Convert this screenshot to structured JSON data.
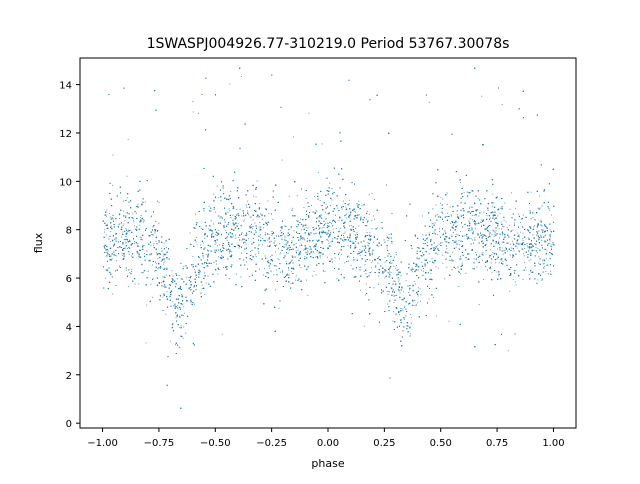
{
  "chart_data": {
    "type": "scatter",
    "title": "1SWASPJ004926.77-310219.0 Period 53767.30078s",
    "xlabel": "phase",
    "ylabel": "flux",
    "xlim": [
      -1.1,
      1.1
    ],
    "ylim": [
      -0.2,
      15.1
    ],
    "xticks": [
      -1.0,
      -0.75,
      -0.5,
      -0.25,
      0.0,
      0.25,
      0.5,
      0.75,
      1.0
    ],
    "xtick_labels": [
      "−1.00",
      "−0.75",
      "−0.50",
      "−0.25",
      "0.00",
      "0.25",
      "0.50",
      "0.75",
      "1.00"
    ],
    "yticks": [
      0,
      2,
      4,
      6,
      8,
      10,
      12,
      14
    ],
    "ytick_labels": [
      "0",
      "2",
      "4",
      "6",
      "8",
      "10",
      "12",
      "14"
    ],
    "grid": false,
    "marker_color": "#1f77b4",
    "series": [
      {
        "x": [
          -1.0,
          -0.9,
          -0.8,
          -0.72,
          -0.66,
          -0.6,
          -0.5,
          -0.4,
          -0.3,
          -0.2,
          -0.1,
          0.0,
          0.1,
          0.2,
          0.28,
          0.34,
          0.4,
          0.5,
          0.6,
          0.7,
          0.8,
          0.9,
          1.0
        ],
        "y": [
          7.5,
          7.8,
          7.6,
          6.2,
          4.6,
          6.5,
          7.9,
          8.0,
          7.7,
          7.1,
          7.6,
          8.1,
          8.0,
          7.4,
          6.2,
          4.6,
          6.4,
          7.9,
          8.1,
          7.8,
          7.6,
          7.6,
          7.5
        ]
      }
    ]
  }
}
